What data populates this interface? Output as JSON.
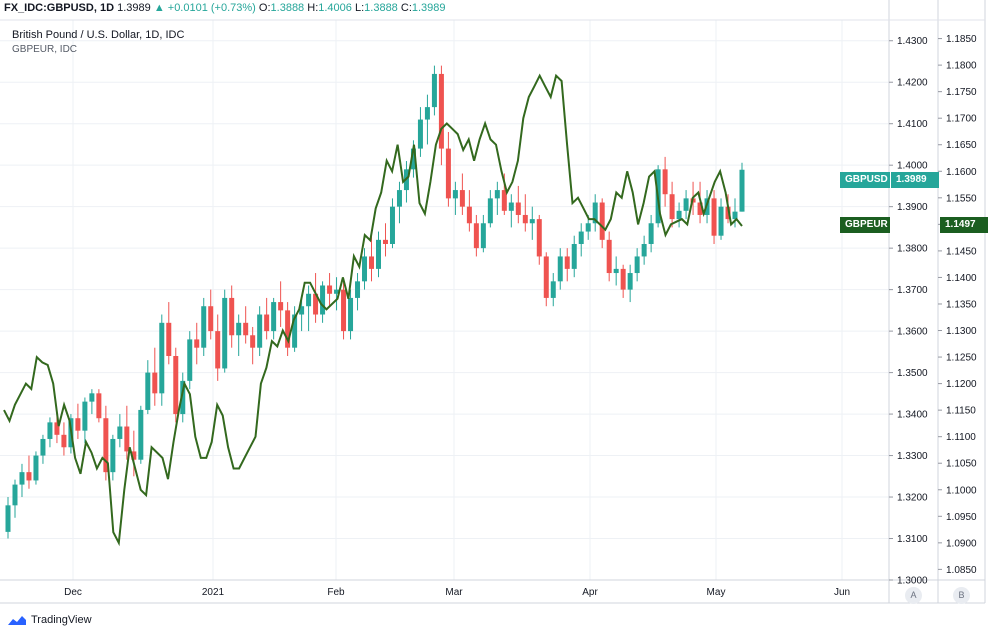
{
  "header": {
    "symbol": "FX_IDC:GBPUSD, 1D",
    "last": "1.3989",
    "change": "+0.0101 (+0.73%)",
    "o_label": "O:",
    "o_value": "1.3888",
    "h_label": "H:",
    "h_value": "1.4006",
    "l_label": "L:",
    "l_value": "1.3888",
    "c_label": "C:",
    "c_value": "1.3989"
  },
  "title": "British Pound / U.S. Dollar, 1D, IDC",
  "subtitle": "GBPEUR, IDC",
  "badges": {
    "gbpusd_label": "GBPUSD",
    "gbpusd_value": "1.3989",
    "gbpeur_label": "GBPEUR",
    "gbpeur_value": "1.1497"
  },
  "axis_buttons": {
    "a": "A",
    "b": "B"
  },
  "brand": "TradingView",
  "colors": {
    "up": "#26a69a",
    "down": "#ef5350",
    "line": "#33691e",
    "grid": "#eef1f5",
    "gbpusd_badge": "#26a69a",
    "gbpeur_badge": "#1b5e20"
  },
  "chart_data": {
    "type": "candlestick",
    "title": "British Pound / U.S. Dollar, 1D, IDC",
    "x_labels": [
      "Dec",
      "2021",
      "Feb",
      "Mar",
      "Apr",
      "May",
      "Jun"
    ],
    "y_left_ticks": [
      "1.4300",
      "1.4200",
      "1.4100",
      "1.4000",
      "1.3900",
      "1.3800",
      "1.3700",
      "1.3600",
      "1.3500",
      "1.3400",
      "1.3300",
      "1.3200",
      "1.3100",
      "1.3000"
    ],
    "y_right_ticks": [
      "1.1850",
      "1.1800",
      "1.1750",
      "1.1700",
      "1.1650",
      "1.1600",
      "1.1550",
      "1.1500",
      "1.1450",
      "1.1400",
      "1.1350",
      "1.1300",
      "1.1250",
      "1.1200",
      "1.1150",
      "1.1100",
      "1.1050",
      "1.1000",
      "1.0950",
      "1.0900",
      "1.0850"
    ],
    "ylim_left": [
      1.3,
      1.435
    ],
    "ylim_right": [
      1.083,
      1.1885
    ],
    "grid": true,
    "series": [
      {
        "name": "GBPUSD",
        "kind": "candles",
        "ohlc": [
          [
            1.3116,
            1.32,
            1.31,
            1.318
          ],
          [
            1.318,
            1.3242,
            1.315,
            1.323
          ],
          [
            1.323,
            1.328,
            1.32,
            1.326
          ],
          [
            1.326,
            1.33,
            1.322,
            1.324
          ],
          [
            1.324,
            1.331,
            1.323,
            1.33
          ],
          [
            1.33,
            1.335,
            1.328,
            1.334
          ],
          [
            1.334,
            1.3392,
            1.332,
            1.338
          ],
          [
            1.338,
            1.3405,
            1.333,
            1.335
          ],
          [
            1.335,
            1.338,
            1.33,
            1.332
          ],
          [
            1.332,
            1.34,
            1.3305,
            1.339
          ],
          [
            1.339,
            1.3425,
            1.334,
            1.336
          ],
          [
            1.336,
            1.344,
            1.333,
            1.343
          ],
          [
            1.343,
            1.346,
            1.34,
            1.345
          ],
          [
            1.345,
            1.346,
            1.338,
            1.339
          ],
          [
            1.339,
            1.342,
            1.324,
            1.326
          ],
          [
            1.326,
            1.335,
            1.324,
            1.334
          ],
          [
            1.334,
            1.34,
            1.332,
            1.337
          ],
          [
            1.337,
            1.342,
            1.329,
            1.331
          ],
          [
            1.331,
            1.336,
            1.325,
            1.329
          ],
          [
            1.329,
            1.342,
            1.328,
            1.341
          ],
          [
            1.341,
            1.353,
            1.34,
            1.35
          ],
          [
            1.35,
            1.356,
            1.342,
            1.345
          ],
          [
            1.345,
            1.364,
            1.342,
            1.362
          ],
          [
            1.362,
            1.367,
            1.352,
            1.354
          ],
          [
            1.354,
            1.356,
            1.338,
            1.34
          ],
          [
            1.34,
            1.35,
            1.338,
            1.348
          ],
          [
            1.348,
            1.36,
            1.346,
            1.358
          ],
          [
            1.358,
            1.362,
            1.352,
            1.356
          ],
          [
            1.356,
            1.368,
            1.354,
            1.366
          ],
          [
            1.366,
            1.37,
            1.358,
            1.36
          ],
          [
            1.36,
            1.364,
            1.348,
            1.351
          ],
          [
            1.351,
            1.37,
            1.35,
            1.368
          ],
          [
            1.368,
            1.371,
            1.356,
            1.359
          ],
          [
            1.359,
            1.364,
            1.354,
            1.362
          ],
          [
            1.362,
            1.366,
            1.357,
            1.359
          ],
          [
            1.359,
            1.361,
            1.352,
            1.356
          ],
          [
            1.356,
            1.366,
            1.354,
            1.364
          ],
          [
            1.364,
            1.368,
            1.358,
            1.36
          ],
          [
            1.36,
            1.368,
            1.358,
            1.367
          ],
          [
            1.367,
            1.372,
            1.361,
            1.365
          ],
          [
            1.365,
            1.367,
            1.354,
            1.356
          ],
          [
            1.356,
            1.366,
            1.355,
            1.364
          ],
          [
            1.364,
            1.368,
            1.36,
            1.366
          ],
          [
            1.366,
            1.371,
            1.36,
            1.369
          ],
          [
            1.369,
            1.374,
            1.362,
            1.364
          ],
          [
            1.364,
            1.372,
            1.362,
            1.371
          ],
          [
            1.371,
            1.374,
            1.366,
            1.369
          ],
          [
            1.369,
            1.373,
            1.365,
            1.37
          ],
          [
            1.37,
            1.372,
            1.358,
            1.36
          ],
          [
            1.36,
            1.37,
            1.358,
            1.368
          ],
          [
            1.368,
            1.374,
            1.365,
            1.372
          ],
          [
            1.372,
            1.38,
            1.37,
            1.378
          ],
          [
            1.378,
            1.383,
            1.372,
            1.375
          ],
          [
            1.375,
            1.384,
            1.373,
            1.382
          ],
          [
            1.382,
            1.386,
            1.378,
            1.381
          ],
          [
            1.381,
            1.392,
            1.38,
            1.39
          ],
          [
            1.39,
            1.396,
            1.386,
            1.394
          ],
          [
            1.394,
            1.401,
            1.391,
            1.399
          ],
          [
            1.399,
            1.406,
            1.397,
            1.404
          ],
          [
            1.404,
            1.414,
            1.402,
            1.411
          ],
          [
            1.411,
            1.417,
            1.405,
            1.414
          ],
          [
            1.414,
            1.424,
            1.412,
            1.422
          ],
          [
            1.422,
            1.424,
            1.4,
            1.404
          ],
          [
            1.404,
            1.408,
            1.39,
            1.392
          ],
          [
            1.392,
            1.396,
            1.388,
            1.394
          ],
          [
            1.394,
            1.398,
            1.388,
            1.39
          ],
          [
            1.39,
            1.394,
            1.384,
            1.386
          ],
          [
            1.386,
            1.388,
            1.378,
            1.38
          ],
          [
            1.38,
            1.388,
            1.379,
            1.386
          ],
          [
            1.386,
            1.394,
            1.385,
            1.392
          ],
          [
            1.392,
            1.396,
            1.388,
            1.394
          ],
          [
            1.394,
            1.398,
            1.388,
            1.389
          ],
          [
            1.389,
            1.393,
            1.385,
            1.391
          ],
          [
            1.391,
            1.395,
            1.386,
            1.388
          ],
          [
            1.388,
            1.393,
            1.384,
            1.386
          ],
          [
            1.386,
            1.39,
            1.382,
            1.387
          ],
          [
            1.387,
            1.388,
            1.376,
            1.378
          ],
          [
            1.378,
            1.379,
            1.366,
            1.368
          ],
          [
            1.368,
            1.374,
            1.366,
            1.372
          ],
          [
            1.372,
            1.38,
            1.37,
            1.378
          ],
          [
            1.378,
            1.38,
            1.372,
            1.375
          ],
          [
            1.375,
            1.383,
            1.373,
            1.381
          ],
          [
            1.381,
            1.386,
            1.378,
            1.384
          ],
          [
            1.384,
            1.388,
            1.382,
            1.386
          ],
          [
            1.386,
            1.393,
            1.384,
            1.391
          ],
          [
            1.391,
            1.392,
            1.38,
            1.382
          ],
          [
            1.382,
            1.384,
            1.372,
            1.374
          ],
          [
            1.374,
            1.378,
            1.371,
            1.375
          ],
          [
            1.375,
            1.376,
            1.368,
            1.37
          ],
          [
            1.37,
            1.376,
            1.367,
            1.374
          ],
          [
            1.374,
            1.38,
            1.372,
            1.378
          ],
          [
            1.378,
            1.383,
            1.376,
            1.381
          ],
          [
            1.381,
            1.388,
            1.379,
            1.386
          ],
          [
            1.386,
            1.4,
            1.385,
            1.399
          ],
          [
            1.399,
            1.402,
            1.39,
            1.393
          ],
          [
            1.393,
            1.396,
            1.385,
            1.387
          ],
          [
            1.387,
            1.391,
            1.385,
            1.389
          ],
          [
            1.389,
            1.394,
            1.387,
            1.392
          ],
          [
            1.392,
            1.396,
            1.388,
            1.391
          ],
          [
            1.391,
            1.396,
            1.386,
            1.388
          ],
          [
            1.388,
            1.394,
            1.386,
            1.392
          ],
          [
            1.392,
            1.394,
            1.381,
            1.383
          ],
          [
            1.383,
            1.392,
            1.382,
            1.39
          ],
          [
            1.39,
            1.393,
            1.386,
            1.387
          ],
          [
            1.387,
            1.392,
            1.385,
            1.3888
          ],
          [
            1.3888,
            1.4006,
            1.3888,
            1.3989
          ]
        ]
      },
      {
        "name": "GBPEUR",
        "kind": "line",
        "axis": "right",
        "values": [
          1.115,
          1.113,
          1.116,
          1.118,
          1.12,
          1.119,
          1.125,
          1.124,
          1.1235,
          1.12,
          1.112,
          1.116,
          1.113,
          1.106,
          1.103,
          1.109,
          1.107,
          1.104,
          1.106,
          1.105,
          1.092,
          1.09,
          1.1,
          1.108,
          1.104,
          1.1,
          1.099,
          1.108,
          1.107,
          1.106,
          1.102,
          1.109,
          1.115,
          1.12,
          1.118,
          1.11,
          1.106,
          1.106,
          1.109,
          1.116,
          1.114,
          1.108,
          1.104,
          1.104,
          1.106,
          1.108,
          1.11,
          1.12,
          1.123,
          1.128,
          1.127,
          1.13,
          1.128,
          1.132,
          1.134,
          1.139,
          1.139,
          1.137,
          1.135,
          1.134,
          1.135,
          1.136,
          1.14,
          1.136,
          1.144,
          1.142,
          1.148,
          1.147,
          1.153,
          1.156,
          1.162,
          1.16,
          1.165,
          1.158,
          1.159,
          1.165,
          1.154,
          1.152,
          1.158,
          1.165,
          1.168,
          1.169,
          1.168,
          1.167,
          1.164,
          1.166,
          1.162,
          1.166,
          1.169,
          1.166,
          1.165,
          1.16,
          1.156,
          1.158,
          1.162,
          1.17,
          1.174,
          1.176,
          1.178,
          1.176,
          1.174,
          1.178,
          1.177,
          1.165,
          1.154,
          1.155,
          1.153,
          1.151,
          1.151,
          1.15,
          1.149,
          1.151,
          1.156,
          1.155,
          1.16,
          1.156,
          1.15,
          1.154,
          1.159,
          1.16,
          1.152,
          1.148,
          1.15,
          1.1505,
          1.151,
          1.15,
          1.155,
          1.156,
          1.152,
          1.155,
          1.158,
          1.16,
          1.156,
          1.15,
          1.151,
          1.1497
        ]
      }
    ]
  }
}
